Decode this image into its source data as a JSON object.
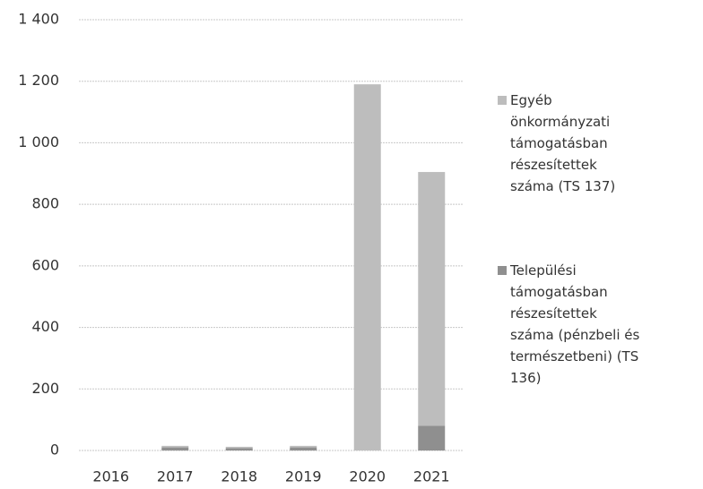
{
  "chart_data": {
    "type": "bar",
    "stacked": true,
    "categories": [
      "2016",
      "2017",
      "2018",
      "2019",
      "2020",
      "2021"
    ],
    "series": [
      {
        "name": "Egyéb önkormányzati támogatásban részesítettek száma (TS 137)",
        "color": "#bdbdbd",
        "values": [
          0,
          5,
          4,
          5,
          1190,
          825
        ]
      },
      {
        "name": "Települési támogatásban részesítettek száma (pénzbeli és természetbeni) (TS 136)",
        "color": "#8f8f8f",
        "values": [
          0,
          10,
          8,
          10,
          0,
          80
        ]
      }
    ],
    "ylim": [
      0,
      1400
    ],
    "yticks": [
      0,
      200,
      400,
      600,
      800,
      {
        "value": 1000,
        "label": "1 000"
      },
      {
        "value": 1200,
        "label": "1 200"
      },
      {
        "value": 1400,
        "label": "1 400"
      }
    ],
    "grid": true
  }
}
